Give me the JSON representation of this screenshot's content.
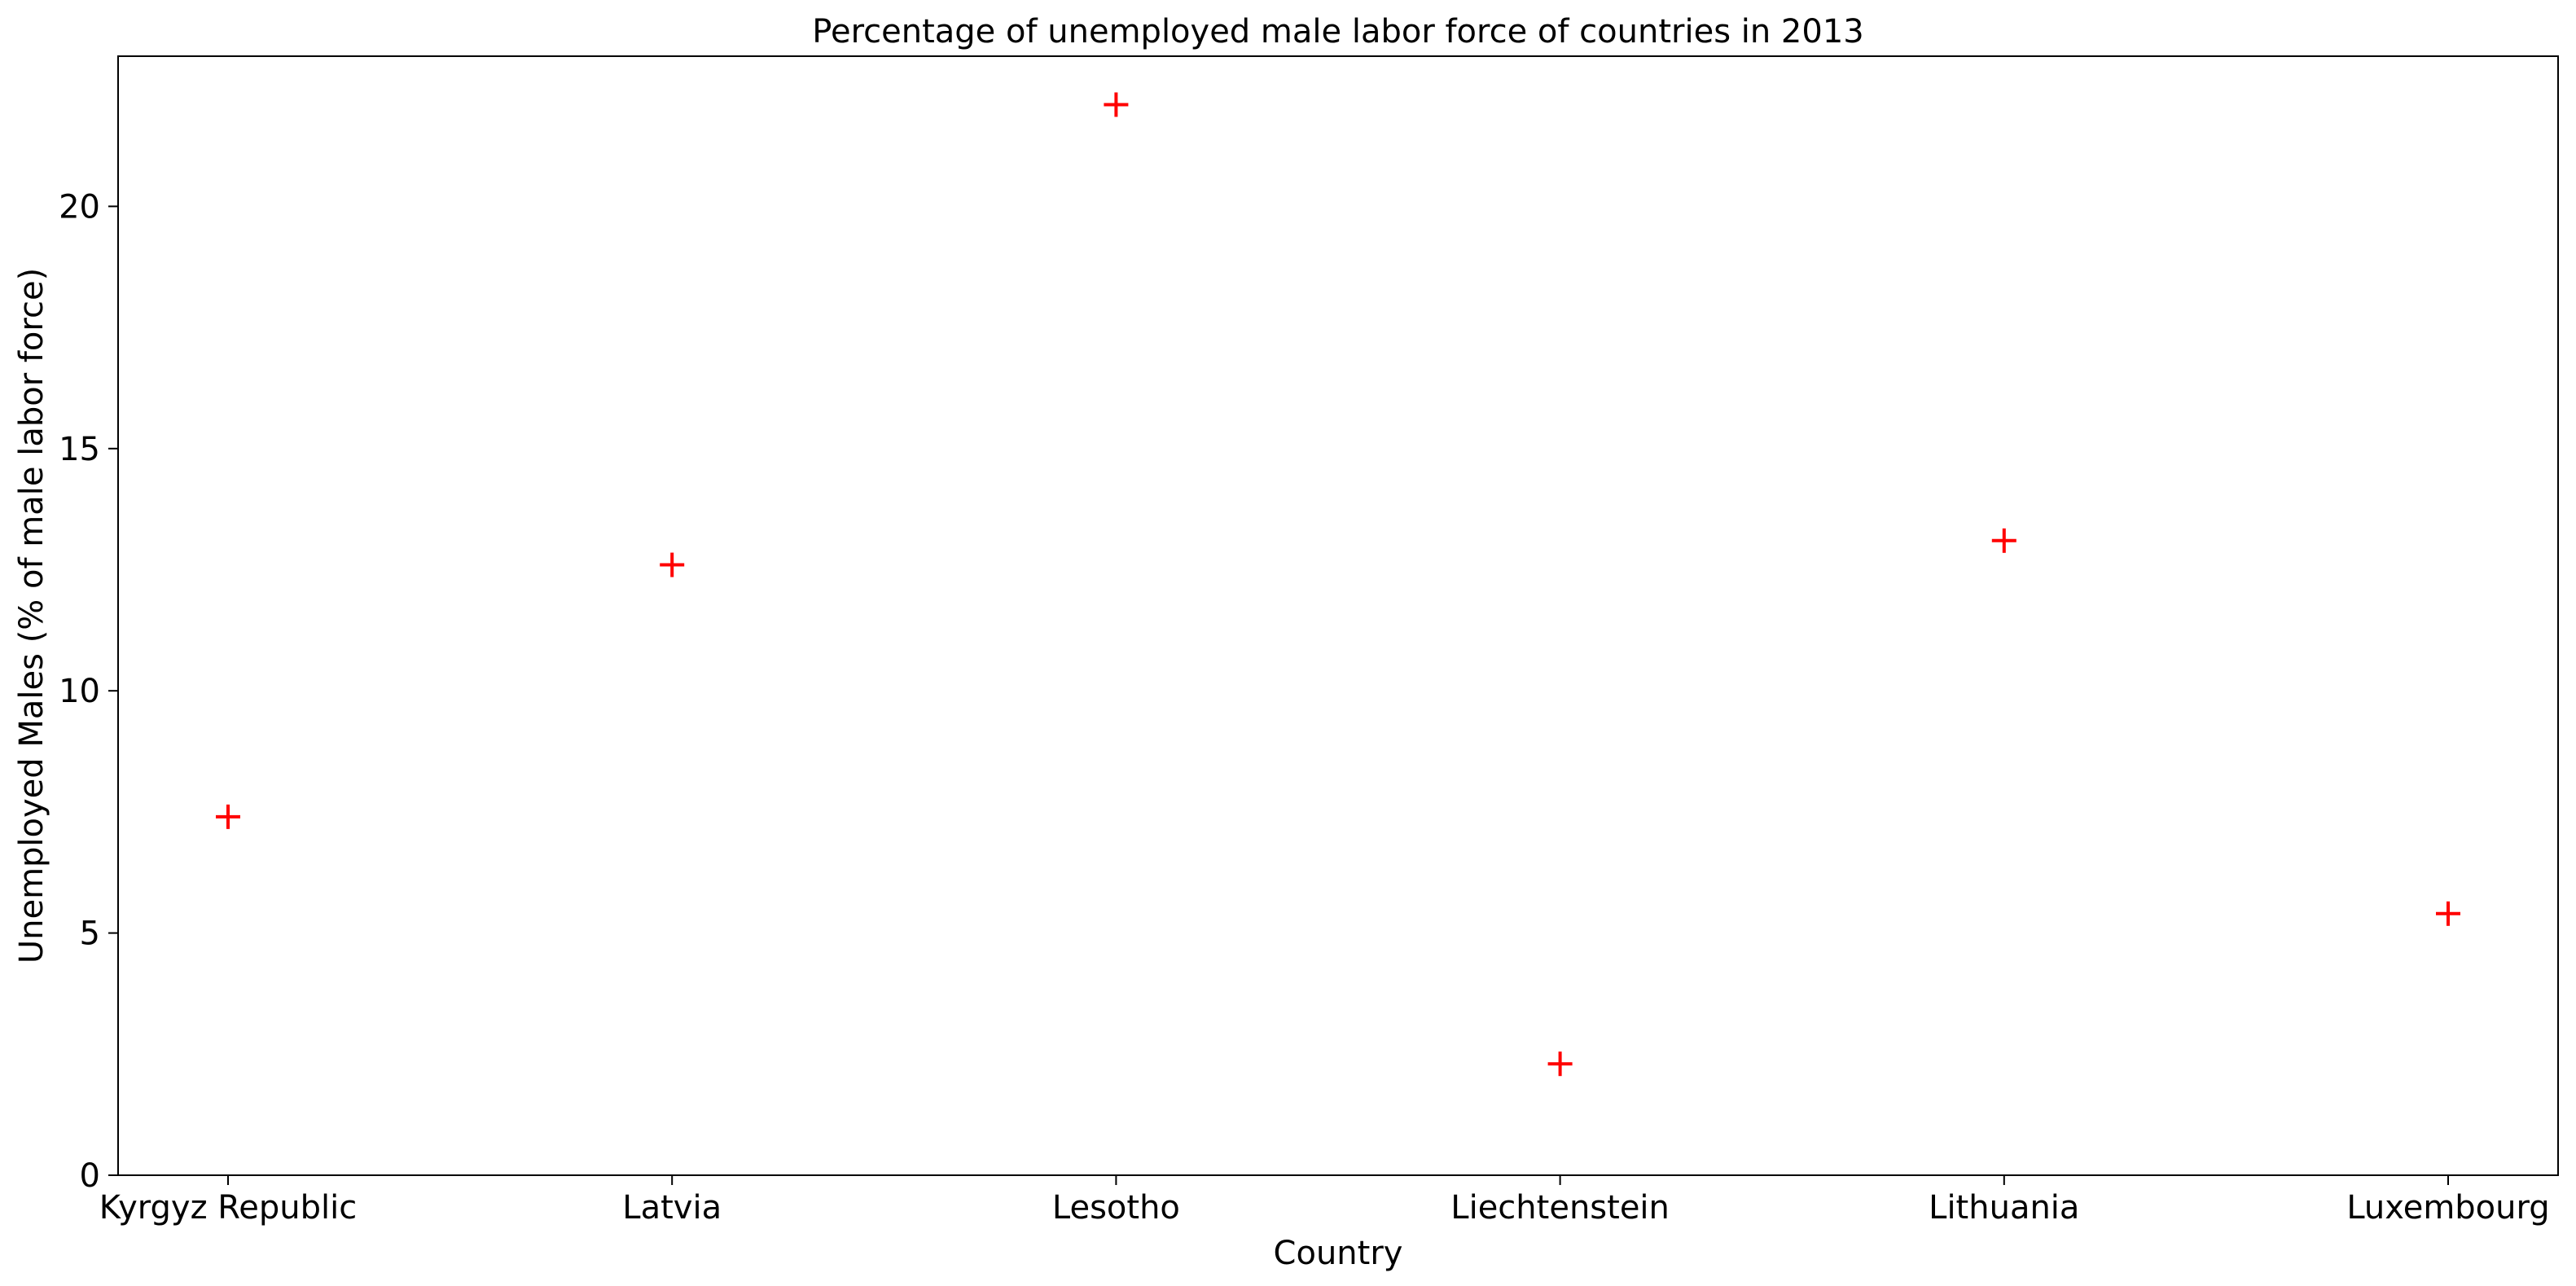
{
  "chart_data": {
    "type": "scatter",
    "title": "Percentage of unemployed male labor force of countries in 2013",
    "xlabel": "Country",
    "ylabel": "Unemployed Males (% of male labor force)",
    "categories": [
      "Kyrgyz Republic",
      "Latvia",
      "Lesotho",
      "Liechtenstein",
      "Lithuania",
      "Luxembourg"
    ],
    "series": [
      {
        "values": [
          7.4,
          12.6,
          22.1,
          2.3,
          13.1,
          5.4
        ]
      }
    ],
    "marker": "plus",
    "marker_color": "#ff0000",
    "ylim": [
      0,
      23.1
    ],
    "yticks": [
      0,
      5,
      10,
      15,
      20
    ],
    "grid": false,
    "legend": "none"
  }
}
